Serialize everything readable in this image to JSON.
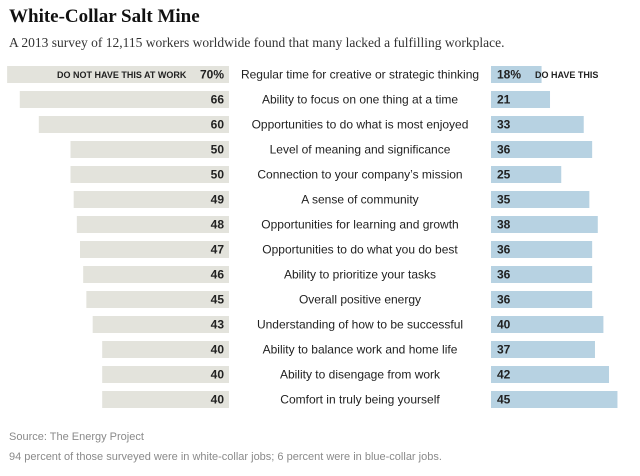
{
  "header": {
    "title": "White-Collar Salt Mine",
    "subtitle": "A 2013 survey of 12,115 workers worldwide found that many lacked a fulfilling workplace."
  },
  "colors": {
    "left_bar": "#e3e3dc",
    "right_bar": "#b7d2e2"
  },
  "chart_data": {
    "type": "bar",
    "title": "White-Collar Salt Mine",
    "left_header": "DO NOT HAVE THIS AT WORK",
    "right_header": "DO HAVE THIS",
    "categories": [
      "Regular time for creative or strategic thinking",
      "Ability to focus on one thing at a time",
      "Opportunities to do what is most enjoyed",
      "Level of meaning and significance",
      "Connection to your company’s mission",
      "A sense of community",
      "Opportunities for learning and growth",
      "Opportunities to do what you do best",
      "Ability to prioritize your tasks",
      "Overall positive energy",
      "Understanding of how to be successful",
      "Ability to balance work and home life",
      "Ability to disengage from work",
      "Comfort in truly being yourself"
    ],
    "series": [
      {
        "name": "DO NOT HAVE THIS AT WORK",
        "values": [
          70,
          66,
          60,
          50,
          50,
          49,
          48,
          47,
          46,
          45,
          43,
          40,
          40,
          40
        ],
        "labels": [
          "70%",
          "66",
          "60",
          "50",
          "50",
          "49",
          "48",
          "47",
          "46",
          "45",
          "43",
          "40",
          "40",
          "40"
        ]
      },
      {
        "name": "DO HAVE THIS",
        "values": [
          18,
          21,
          33,
          36,
          25,
          35,
          38,
          36,
          36,
          36,
          40,
          37,
          42,
          45
        ],
        "labels": [
          "18%",
          "21",
          "33",
          "36",
          "25",
          "35",
          "38",
          "36",
          "36",
          "36",
          "40",
          "37",
          "42",
          "45"
        ]
      }
    ],
    "units": "percent",
    "grid": false,
    "legend": "top"
  },
  "footer": {
    "source": "Source: The Energy Project",
    "note": "94 percent of those surveyed were in white-collar jobs; 6 percent were in blue-collar jobs."
  }
}
